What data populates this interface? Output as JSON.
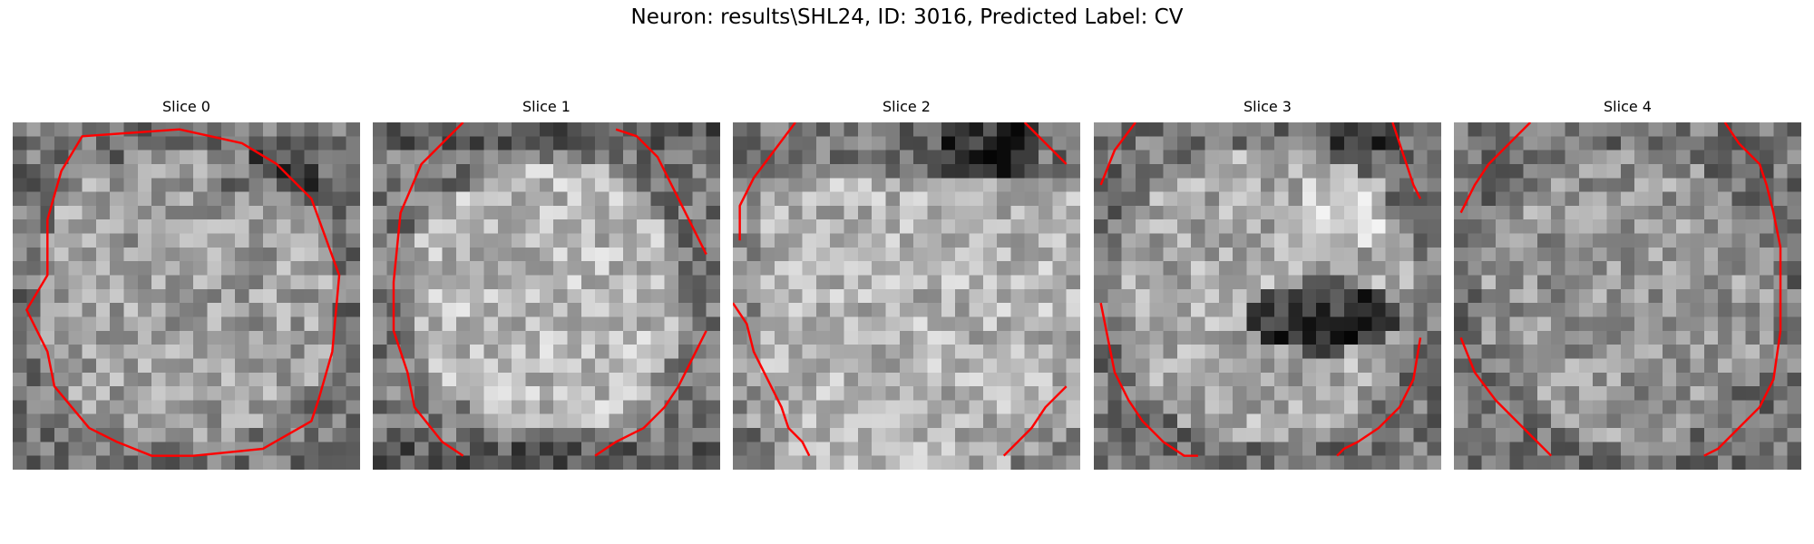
{
  "figure": {
    "suptitle": "Neuron: results\\SHL24, ID: 3016, Predicted Label: CV"
  },
  "colors": {
    "contour": "#ff0000",
    "colormap": "gray"
  },
  "panels": [
    {
      "title": "Slice 0",
      "contour_grid_points": [
        [
          5.0,
          1.0
        ],
        [
          12.0,
          0.5
        ],
        [
          16.5,
          1.5
        ],
        [
          19.0,
          3.0
        ],
        [
          21.5,
          5.5
        ],
        [
          23.5,
          11.0
        ],
        [
          23.0,
          16.5
        ],
        [
          22.0,
          20.0
        ],
        [
          21.5,
          21.5
        ],
        [
          18.0,
          23.5
        ],
        [
          13.0,
          24.0
        ],
        [
          10.0,
          24.0
        ],
        [
          7.5,
          23.0
        ],
        [
          5.5,
          22.0
        ],
        [
          3.0,
          19.0
        ],
        [
          2.5,
          16.5
        ],
        [
          1.0,
          13.5
        ],
        [
          2.5,
          11.0
        ],
        [
          2.5,
          7.0
        ],
        [
          3.5,
          3.5
        ],
        [
          5.0,
          1.0
        ]
      ],
      "contour_closed": true
    },
    {
      "title": "Slice 1",
      "contour_segments": [
        [
          [
            6.5,
            0.0
          ],
          [
            3.5,
            3.0
          ],
          [
            2.0,
            6.5
          ],
          [
            1.5,
            11.5
          ],
          [
            1.5,
            15.0
          ],
          [
            2.5,
            18.0
          ],
          [
            3.0,
            20.5
          ],
          [
            5.0,
            23.0
          ],
          [
            6.5,
            24.0
          ]
        ],
        [
          [
            17.5,
            0.5
          ],
          [
            19.0,
            1.0
          ],
          [
            20.5,
            2.5
          ],
          [
            21.5,
            4.5
          ],
          [
            22.5,
            6.5
          ],
          [
            23.5,
            8.5
          ],
          [
            24.0,
            9.5
          ]
        ],
        [
          [
            24.0,
            15.0
          ],
          [
            23.0,
            17.0
          ],
          [
            22.0,
            19.0
          ],
          [
            21.0,
            20.5
          ],
          [
            19.5,
            22.0
          ],
          [
            18.5,
            22.5
          ],
          [
            17.5,
            23.0
          ],
          [
            16.0,
            24.0
          ]
        ]
      ]
    },
    {
      "title": "Slice 2",
      "contour_segments": [
        [
          [
            4.5,
            0.0
          ],
          [
            3.0,
            2.0
          ],
          [
            1.5,
            4.0
          ],
          [
            0.5,
            6.0
          ],
          [
            0.5,
            8.5
          ]
        ],
        [
          [
            0.0,
            13.0
          ],
          [
            1.0,
            14.5
          ],
          [
            1.5,
            16.5
          ],
          [
            2.5,
            18.5
          ],
          [
            3.5,
            20.5
          ],
          [
            4.0,
            22.0
          ],
          [
            5.0,
            23.0
          ],
          [
            5.5,
            24.0
          ]
        ],
        [
          [
            21.0,
            0.0
          ],
          [
            22.5,
            1.5
          ],
          [
            24.0,
            3.0
          ]
        ],
        [
          [
            24.0,
            19.0
          ],
          [
            22.5,
            20.5
          ],
          [
            21.5,
            22.0
          ],
          [
            20.5,
            23.0
          ],
          [
            19.5,
            24.0
          ]
        ]
      ]
    },
    {
      "title": "Slice 3",
      "contour_segments": [
        [
          [
            3.0,
            0.0
          ],
          [
            1.5,
            2.0
          ],
          [
            0.5,
            4.5
          ]
        ],
        [
          [
            0.5,
            13.0
          ],
          [
            1.0,
            15.5
          ],
          [
            1.5,
            18.0
          ],
          [
            2.5,
            20.0
          ],
          [
            3.5,
            21.5
          ],
          [
            5.0,
            23.0
          ],
          [
            6.5,
            24.0
          ],
          [
            7.5,
            24.0
          ]
        ],
        [
          [
            21.5,
            0.0
          ],
          [
            22.0,
            1.5
          ],
          [
            22.5,
            3.0
          ],
          [
            23.0,
            4.5
          ],
          [
            23.5,
            5.5
          ]
        ],
        [
          [
            23.5,
            15.5
          ],
          [
            23.0,
            18.5
          ],
          [
            22.0,
            20.5
          ],
          [
            20.5,
            22.0
          ],
          [
            19.0,
            23.0
          ],
          [
            18.0,
            23.5
          ],
          [
            17.5,
            24.0
          ]
        ]
      ]
    },
    {
      "title": "Slice 4",
      "contour_segments": [
        [
          [
            5.5,
            0.0
          ],
          [
            4.0,
            1.5
          ],
          [
            2.5,
            3.0
          ],
          [
            1.5,
            4.5
          ],
          [
            0.5,
            6.5
          ]
        ],
        [
          [
            0.5,
            15.5
          ],
          [
            1.5,
            18.0
          ],
          [
            3.0,
            20.0
          ],
          [
            4.5,
            21.5
          ],
          [
            6.0,
            23.0
          ],
          [
            7.0,
            24.0
          ]
        ],
        [
          [
            19.5,
            0.0
          ],
          [
            20.5,
            1.5
          ],
          [
            22.0,
            3.0
          ],
          [
            22.5,
            4.5
          ],
          [
            23.0,
            6.5
          ],
          [
            23.5,
            9.0
          ],
          [
            23.5,
            15.0
          ],
          [
            23.0,
            18.5
          ],
          [
            22.0,
            20.5
          ],
          [
            20.5,
            22.0
          ],
          [
            19.0,
            23.5
          ],
          [
            18.0,
            24.0
          ]
        ]
      ]
    }
  ]
}
